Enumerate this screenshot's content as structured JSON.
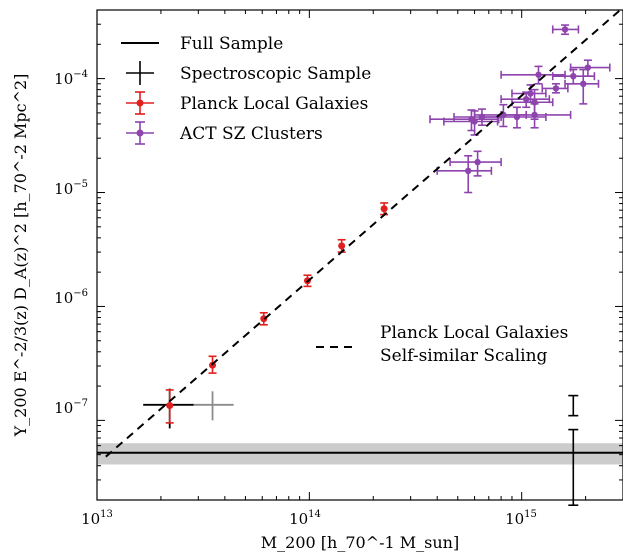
{
  "chart_data": {
    "type": "scatter",
    "xscale": "log",
    "yscale": "log",
    "xlim": [
      10000000000000.0,
      3000000000000000.0
    ],
    "ylim": [
      2e-08,
      0.0004
    ],
    "xlabel": "M_200 [h_70^-1 M_sun]",
    "ylabel": "Y_200 E^-2/3(z) D_A(z)^2 [h_70^-2 Mpc^2]",
    "x_ticks": [
      {
        "value": 10000000000000.0,
        "base": "10",
        "exp": "13"
      },
      {
        "value": 100000000000000.0,
        "base": "10",
        "exp": "14"
      },
      {
        "value": 1000000000000000.0,
        "base": "10",
        "exp": "15"
      }
    ],
    "y_ticks": [
      {
        "value": 1e-07,
        "base": "10",
        "exp": "−7"
      },
      {
        "value": 1e-06,
        "base": "10",
        "exp": "−6"
      },
      {
        "value": 1e-05,
        "base": "10",
        "exp": "−5"
      },
      {
        "value": 0.0001,
        "base": "10",
        "exp": "−4"
      }
    ],
    "grid": false,
    "legend_position": "upper-left",
    "legend": [
      {
        "label": "Full Sample",
        "kind": "line",
        "color": "#000000"
      },
      {
        "label": "Spectroscopic Sample",
        "kind": "cross",
        "color": "#000000"
      },
      {
        "label": "Planck Local Galaxies",
        "kind": "point",
        "color": "#e0201e"
      },
      {
        "label": "ACT SZ Clusters",
        "kind": "point",
        "color": "#8e44ad"
      }
    ],
    "annotation": {
      "line1": "Planck Local Galaxies",
      "line2": "Self-similar Scaling"
    },
    "series": [
      {
        "name": "Full Sample",
        "kind": "hline",
        "color": "#000000",
        "y": 5.2e-08,
        "band": [
          4.1e-08,
          6.3e-08
        ],
        "band_color": "#cccccc",
        "errorbar": {
          "x": 1750000000000000.0,
          "y": 5.2e-08,
          "ylo": 1.8e-08,
          "yhi": 8.3e-08
        }
      },
      {
        "name": "Spectroscopic Sample",
        "kind": "cross",
        "color": "#000000",
        "points": [
          {
            "x": 22000000000000.0,
            "y": 1.37e-07,
            "xlo": 16500000000000.0,
            "xhi": 28500000000000.0,
            "ylo": 8.5e-08,
            "yhi": 1.9e-07
          }
        ],
        "errorbar": {
          "x": 1750000000000000.0,
          "y": 1.37e-07,
          "ylo": 1.1e-07,
          "yhi": 1.65e-07
        },
        "gray_point": {
          "x": 35000000000000.0,
          "y": 1.37e-07,
          "xlo": 28500000000000.0,
          "xhi": 44000000000000.0,
          "ylo": 1e-07,
          "yhi": 1.8e-07,
          "color": "#8c8c8c"
        }
      },
      {
        "name": "Planck Local Galaxies",
        "kind": "points",
        "color": "#e0201e",
        "points": [
          {
            "x": 22000000000000.0,
            "y": 1.35e-07,
            "ylo": 9.5e-08,
            "yhi": 1.85e-07
          },
          {
            "x": 35000000000000.0,
            "y": 3.05e-07,
            "ylo": 2.6e-07,
            "yhi": 3.65e-07
          },
          {
            "x": 61000000000000.0,
            "y": 7.8e-07,
            "ylo": 6.9e-07,
            "yhi": 8.8e-07
          },
          {
            "x": 98000000000000.0,
            "y": 1.68e-06,
            "ylo": 1.5e-06,
            "yhi": 1.88e-06
          },
          {
            "x": 142000000000000.0,
            "y": 3.4e-06,
            "ylo": 3e-06,
            "yhi": 3.85e-06
          },
          {
            "x": 225000000000000.0,
            "y": 7.2e-06,
            "ylo": 6.4e-06,
            "yhi": 8.1e-06
          }
        ]
      },
      {
        "name": "ACT SZ Clusters",
        "kind": "points",
        "color": "#8e44ad",
        "points": [
          {
            "x": 1600000000000000.0,
            "y": 0.00027,
            "xlo": 1400000000000000.0,
            "xhi": 1850000000000000.0,
            "ylo": 0.000245,
            "yhi": 0.000295
          },
          {
            "x": 2050000000000000.0,
            "y": 0.000125,
            "xlo": 1700000000000000.0,
            "xhi": 2600000000000000.0,
            "ylo": 0.000105,
            "yhi": 0.000145
          },
          {
            "x": 1750000000000000.0,
            "y": 0.000105,
            "xlo": 1400000000000000.0,
            "xhi": 2200000000000000.0,
            "ylo": 9e-05,
            "yhi": 0.00012
          },
          {
            "x": 1200000000000000.0,
            "y": 0.000108,
            "xlo": 800000000000000.0,
            "xhi": 1600000000000000.0,
            "ylo": 9e-05,
            "yhi": 0.000128
          },
          {
            "x": 1950000000000000.0,
            "y": 9e-05,
            "xlo": 1600000000000000.0,
            "xhi": 2300000000000000.0,
            "ylo": 6e-05,
            "yhi": 0.00012
          },
          {
            "x": 1450000000000000.0,
            "y": 8.2e-05,
            "xlo": 1250000000000000.0,
            "xhi": 1650000000000000.0,
            "ylo": 7.5e-05,
            "yhi": 9e-05
          },
          {
            "x": 1100000000000000.0,
            "y": 7.4e-05,
            "xlo": 900000000000000.0,
            "xhi": 1300000000000000.0,
            "ylo": 6.2e-05,
            "yhi": 8.8e-05
          },
          {
            "x": 1050000000000000.0,
            "y": 6.6e-05,
            "xlo": 800000000000000.0,
            "xhi": 1350000000000000.0,
            "ylo": 5.6e-05,
            "yhi": 7.6e-05
          },
          {
            "x": 1150000000000000.0,
            "y": 6.2e-05,
            "xlo": 900000000000000.0,
            "xhi": 1400000000000000.0,
            "ylo": 4.4e-05,
            "yhi": 8e-05
          },
          {
            "x": 1150000000000000.0,
            "y": 4.8e-05,
            "xlo": 800000000000000.0,
            "xhi": 1700000000000000.0,
            "ylo": 3.7e-05,
            "yhi": 6e-05
          },
          {
            "x": 950000000000000.0,
            "y": 4.6e-05,
            "xlo": 650000000000000.0,
            "xhi": 1300000000000000.0,
            "ylo": 3.7e-05,
            "yhi": 5.6e-05
          },
          {
            "x": 820000000000000.0,
            "y": 4.8e-05,
            "xlo": 600000000000000.0,
            "xhi": 1050000000000000.0,
            "ylo": 3.8e-05,
            "yhi": 5.9e-05
          },
          {
            "x": 650000000000000.0,
            "y": 4.6e-05,
            "xlo": 480000000000000.0,
            "xhi": 800000000000000.0,
            "ylo": 3.9e-05,
            "yhi": 5.4e-05
          },
          {
            "x": 580000000000000.0,
            "y": 4.4e-05,
            "xlo": 370000000000000.0,
            "xhi": 780000000000000.0,
            "ylo": 3.5e-05,
            "yhi": 5.3e-05
          },
          {
            "x": 600000000000000.0,
            "y": 4.2e-05,
            "xlo": 430000000000000.0,
            "xhi": 770000000000000.0,
            "ylo": 3.2e-05,
            "yhi": 5.2e-05
          },
          {
            "x": 620000000000000.0,
            "y": 1.85e-05,
            "xlo": 460000000000000.0,
            "xhi": 800000000000000.0,
            "ylo": 1.4e-05,
            "yhi": 2.3e-05
          },
          {
            "x": 560000000000000.0,
            "y": 1.55e-05,
            "xlo": 400000000000000.0,
            "xhi": 720000000000000.0,
            "ylo": 1e-05,
            "yhi": 2.1e-05
          }
        ]
      },
      {
        "name": "Planck Local Galaxies Self-similar Scaling",
        "kind": "line",
        "style": "dashed",
        "color": "#000000",
        "points": [
          {
            "x": 11000000000000.0,
            "y": 4.8e-08
          },
          {
            "x": 3000000000000000.0,
            "y": 0.00042
          }
        ]
      }
    ]
  }
}
